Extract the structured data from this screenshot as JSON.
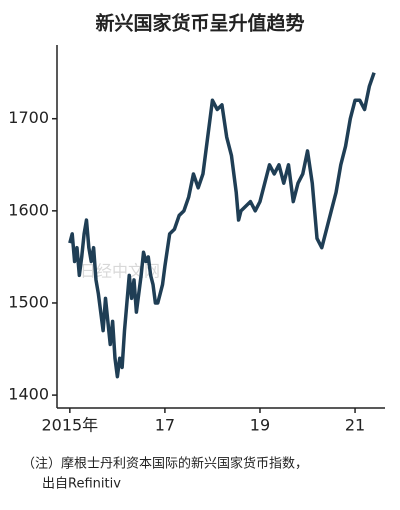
{
  "chart_data": {
    "type": "line",
    "title": "新兴国家货币呈升值趋势",
    "watermark": "日经中文网",
    "note": [
      "（注）摩根士丹利资本国际的新兴国家货币指数，",
      "出自Refinitiv"
    ],
    "xlim": [
      2014.73,
      2021.63
    ],
    "xticks": [
      {
        "value": 2015,
        "label": "2015年"
      },
      {
        "value": 2017,
        "label": "17"
      },
      {
        "value": 2019,
        "label": "19"
      },
      {
        "value": 2021,
        "label": "21"
      }
    ],
    "ylim": [
      1386,
      1780
    ],
    "yticks": [
      1400,
      1500,
      1600,
      1700
    ],
    "grid": false,
    "series": [
      {
        "color": "#1f3e55",
        "x": [
          2015.0,
          2015.05,
          2015.1,
          2015.15,
          2015.2,
          2015.25,
          2015.3,
          2015.35,
          2015.4,
          2015.45,
          2015.5,
          2015.55,
          2015.6,
          2015.65,
          2015.7,
          2015.75,
          2015.8,
          2015.85,
          2015.9,
          2015.95,
          2016.0,
          2016.05,
          2016.1,
          2016.15,
          2016.2,
          2016.25,
          2016.3,
          2016.35,
          2016.4,
          2016.45,
          2016.5,
          2016.55,
          2016.6,
          2016.65,
          2016.7,
          2016.75,
          2016.8,
          2016.85,
          2016.9,
          2016.95,
          2017.0,
          2017.1,
          2017.2,
          2017.3,
          2017.4,
          2017.5,
          2017.6,
          2017.7,
          2017.8,
          2017.9,
          2018.0,
          2018.1,
          2018.2,
          2018.3,
          2018.4,
          2018.5,
          2018.55,
          2018.6,
          2018.7,
          2018.8,
          2018.9,
          2019.0,
          2019.1,
          2019.2,
          2019.3,
          2019.4,
          2019.5,
          2019.6,
          2019.7,
          2019.8,
          2019.9,
          2020.0,
          2020.1,
          2020.15,
          2020.2,
          2020.3,
          2020.4,
          2020.5,
          2020.6,
          2020.7,
          2020.8,
          2020.9,
          2021.0,
          2021.1,
          2021.2,
          2021.3,
          2021.4
        ],
        "values": [
          1565,
          1575,
          1545,
          1560,
          1530,
          1550,
          1575,
          1590,
          1560,
          1545,
          1560,
          1525,
          1510,
          1490,
          1470,
          1505,
          1480,
          1455,
          1480,
          1440,
          1420,
          1440,
          1430,
          1470,
          1500,
          1530,
          1505,
          1525,
          1490,
          1510,
          1530,
          1555,
          1545,
          1550,
          1530,
          1520,
          1500,
          1500,
          1510,
          1520,
          1540,
          1575,
          1580,
          1595,
          1600,
          1615,
          1640,
          1625,
          1640,
          1680,
          1720,
          1710,
          1715,
          1680,
          1660,
          1620,
          1590,
          1600,
          1605,
          1610,
          1600,
          1610,
          1630,
          1650,
          1640,
          1650,
          1630,
          1650,
          1610,
          1630,
          1640,
          1665,
          1630,
          1600,
          1570,
          1560,
          1580,
          1600,
          1620,
          1650,
          1670,
          1700,
          1720,
          1720,
          1710,
          1735,
          1750
        ]
      }
    ]
  }
}
